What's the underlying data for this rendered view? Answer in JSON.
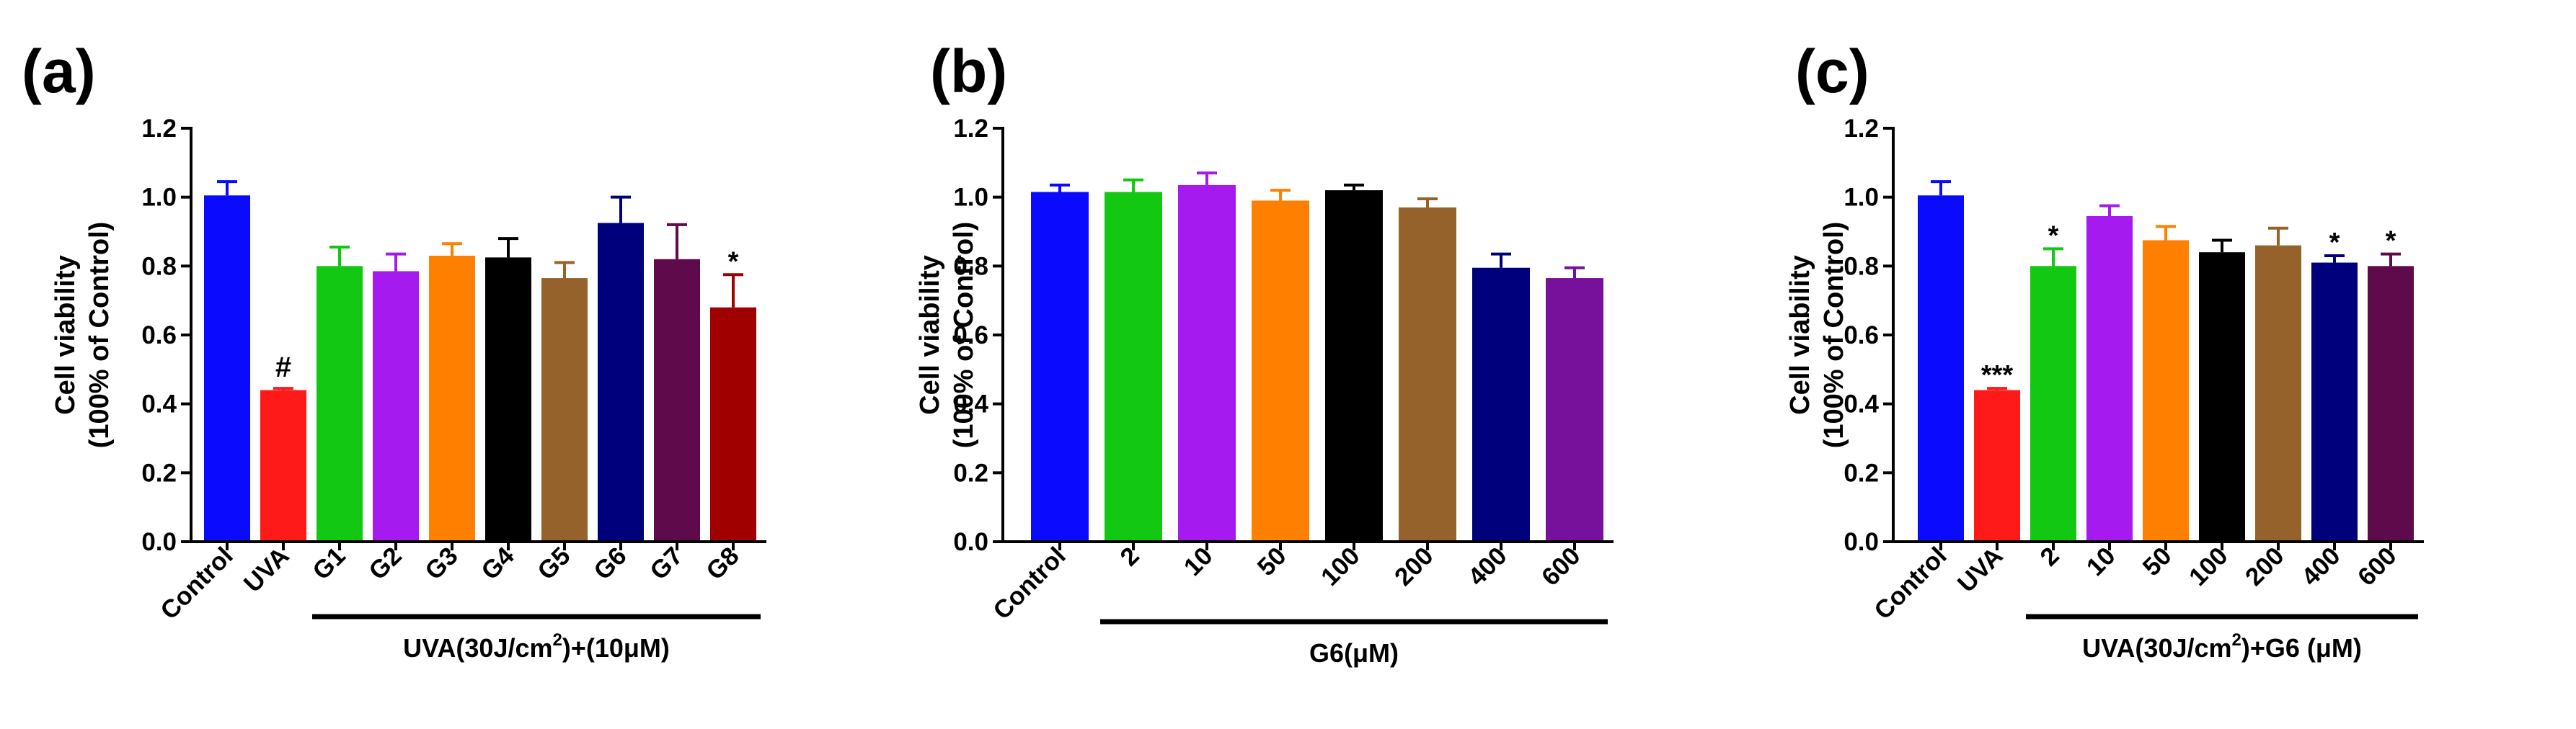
{
  "chart_data": [
    {
      "type": "bar",
      "panel_label": "(a)",
      "ylabel_line1": "Cell viability",
      "ylabel_line2": "(100% of Control)",
      "ylim": [
        0,
        1.2
      ],
      "yticks": [
        "0.0",
        "0.2",
        "0.4",
        "0.6",
        "0.8",
        "1.0",
        "1.2"
      ],
      "categories": [
        "Control",
        "UVA",
        "G1",
        "G2",
        "G3",
        "G4",
        "G5",
        "G6",
        "G7",
        "G8"
      ],
      "values": [
        1.005,
        0.44,
        0.8,
        0.785,
        0.83,
        0.825,
        0.765,
        0.925,
        0.82,
        0.68
      ],
      "errors": [
        0.04,
        0.005,
        0.055,
        0.05,
        0.035,
        0.055,
        0.045,
        0.075,
        0.1,
        0.095
      ],
      "colors": [
        "#0a0aff",
        "#ff1a1a",
        "#12c812",
        "#a51aee",
        "#ff8000",
        "#000000",
        "#94622a",
        "#00007c",
        "#5e0a4b",
        "#a00000"
      ],
      "annotations": [
        "",
        "#",
        "",
        "",
        "",
        "",
        "",
        "",
        "",
        "*"
      ],
      "group_label_main": "UVA(30J/cm",
      "group_label_sup": "2",
      "group_label_tail": ")+(10μM)",
      "group_start_index": 2
    },
    {
      "type": "bar",
      "panel_label": "(b)",
      "ylabel_line1": "Cell viability",
      "ylabel_line2": "(100% of Control)",
      "ylim": [
        0,
        1.2
      ],
      "yticks": [
        "0.0",
        "0.2",
        "0.4",
        "0.6",
        "0.8",
        "1.0",
        "1.2"
      ],
      "categories": [
        "Control",
        "2",
        "10",
        "50",
        "100",
        "200",
        "400",
        "600"
      ],
      "values": [
        1.015,
        1.015,
        1.035,
        0.99,
        1.02,
        0.97,
        0.795,
        0.765
      ],
      "errors": [
        0.02,
        0.035,
        0.035,
        0.03,
        0.015,
        0.025,
        0.04,
        0.03
      ],
      "colors": [
        "#0a0aff",
        "#12c812",
        "#a51aee",
        "#ff8000",
        "#000000",
        "#94622a",
        "#00007c",
        "#77119b"
      ],
      "annotations": [
        "",
        "",
        "",
        "",
        "",
        "",
        "",
        ""
      ],
      "group_label_main": "G6(μM)",
      "group_label_sup": "",
      "group_label_tail": "",
      "group_start_index": 1
    },
    {
      "type": "bar",
      "panel_label": "(c)",
      "ylabel_line1": "Cell viability",
      "ylabel_line2": "(100% of Control)",
      "ylim": [
        0,
        1.2
      ],
      "yticks": [
        "0.0",
        "0.2",
        "0.4",
        "0.6",
        "0.8",
        "1.0",
        "1.2"
      ],
      "categories": [
        "Control",
        "UVA",
        "2",
        "10",
        "50",
        "100",
        "200",
        "400",
        "600"
      ],
      "values": [
        1.005,
        0.44,
        0.8,
        0.945,
        0.875,
        0.84,
        0.86,
        0.81,
        0.8
      ],
      "errors": [
        0.04,
        0.005,
        0.05,
        0.03,
        0.04,
        0.035,
        0.05,
        0.02,
        0.035
      ],
      "colors": [
        "#0a0aff",
        "#ff1a1a",
        "#12c812",
        "#a51aee",
        "#ff8000",
        "#000000",
        "#94622a",
        "#00007c",
        "#5e0a4b"
      ],
      "annotations": [
        "",
        "***",
        "*",
        "",
        "",
        "",
        "",
        "*",
        "*"
      ],
      "group_label_main": "UVA(30J/cm",
      "group_label_sup": "2",
      "group_label_tail": ")+G6 (μM)",
      "group_start_index": 2
    }
  ]
}
